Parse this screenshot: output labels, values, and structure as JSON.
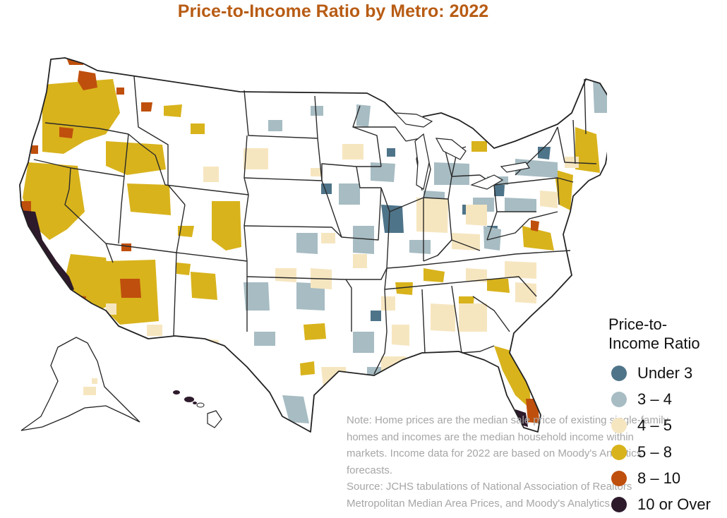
{
  "title": "Price-to-Income Ratio by Metro: 2022",
  "legend": {
    "title_line1": "Price-to-",
    "title_line2": "Income Ratio",
    "items": [
      {
        "label": "Under 3",
        "color": "#4e7489"
      },
      {
        "label": "3 – 4",
        "color": "#a7bcc3"
      },
      {
        "label": "4 – 5",
        "color": "#f6e6c0"
      },
      {
        "label": "5 – 8",
        "color": "#d8b31c"
      },
      {
        "label": "8 – 10",
        "color": "#bf4f0c"
      },
      {
        "label": "10 or Over",
        "color": "#2d1a2b"
      }
    ]
  },
  "note": {
    "line1": "Note: Home prices are the median sale price of existing single-family",
    "line2": "homes and incomes are the median household income within",
    "line3": "markets. Income data for 2022 are based on Moody's Analytics",
    "line4": "forecasts.",
    "line5": "Source: JCHS tabulations of National Association of Realtors",
    "line6": "Metropolitan Median Area Prices, and Moody's Analytics."
  }
}
